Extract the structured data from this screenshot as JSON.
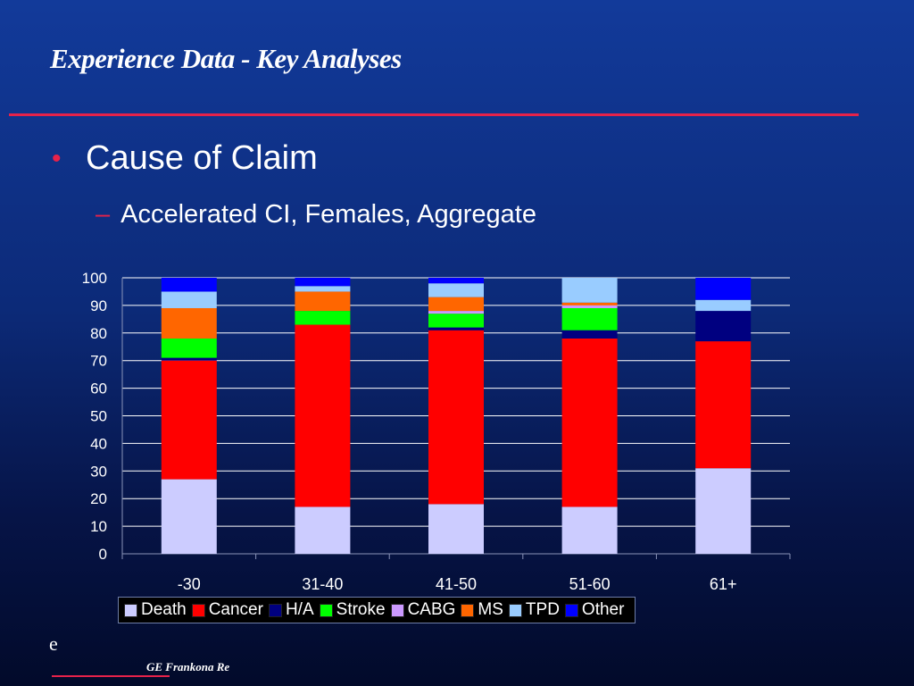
{
  "slide": {
    "title": "Experience Data - Key Analyses",
    "bullet": "Cause of Claim",
    "bullet_symbol": "•",
    "subbullet": "Accelerated CI, Females, Aggregate",
    "subbullet_symbol": "–",
    "footer_logo_text": "e",
    "footer_brand": "GE Frankona Re"
  },
  "colors": {
    "accent": "#e6224a",
    "background_top": "#123a9a",
    "background_bottom": "#020a2a"
  },
  "chart_data": {
    "type": "bar",
    "stacked": true,
    "categories": [
      "-30",
      "31-40",
      "41-50",
      "51-60",
      "61+"
    ],
    "ylim": [
      0,
      100
    ],
    "yticks": [
      0,
      10,
      20,
      30,
      40,
      50,
      60,
      70,
      80,
      90,
      100
    ],
    "grid": true,
    "legend_position": "bottom",
    "series": [
      {
        "name": "Death",
        "color": "#ccccff",
        "values": [
          27,
          17,
          18,
          17,
          31
        ]
      },
      {
        "name": "Cancer",
        "color": "#ff0000",
        "values": [
          43,
          66,
          63,
          61,
          46
        ]
      },
      {
        "name": "H/A",
        "color": "#000080",
        "values": [
          1,
          0,
          1,
          3,
          11
        ]
      },
      {
        "name": "Stroke",
        "color": "#00ff00",
        "values": [
          7,
          5,
          5,
          8,
          0
        ]
      },
      {
        "name": "CABG",
        "color": "#cc99ff",
        "values": [
          0,
          0,
          1,
          1,
          0
        ]
      },
      {
        "name": "MS",
        "color": "#ff6600",
        "values": [
          11,
          7,
          5,
          1,
          0
        ]
      },
      {
        "name": "TPD",
        "color": "#99ccff",
        "values": [
          6,
          2,
          5,
          9,
          4
        ]
      },
      {
        "name": "Other",
        "color": "#0000ff",
        "values": [
          5,
          3,
          2,
          0,
          8
        ]
      }
    ]
  }
}
